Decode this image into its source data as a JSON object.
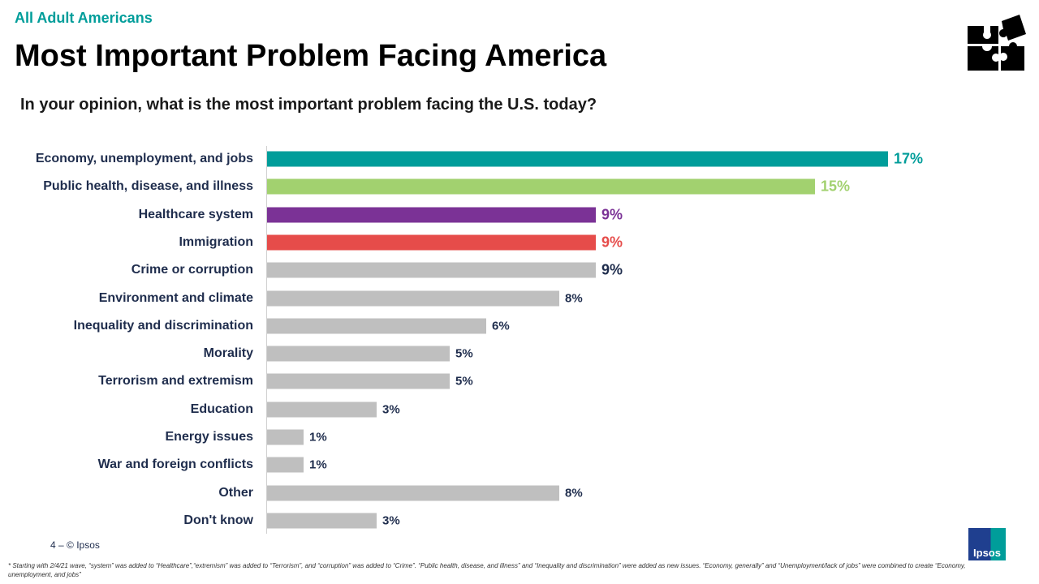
{
  "header": {
    "audience": "All Adult Americans",
    "title": "Most Important Problem Facing America",
    "question": "In your opinion, what is the most important problem facing the U.S. today?"
  },
  "chart_data": {
    "type": "bar",
    "orientation": "horizontal",
    "title": "Most Important Problem Facing America",
    "subtitle": "In your opinion, what is the most important problem facing the U.S. today?",
    "categories": [
      "Economy, unemployment, and jobs",
      "Public health, disease, and illness",
      "Healthcare system",
      "Immigration",
      "Crime or corruption",
      "Environment and climate",
      "Inequality and discrimination",
      "Morality",
      "Terrorism and extremism",
      "Education",
      "Energy issues",
      "War and foreign conflicts",
      "Other",
      "Don't know"
    ],
    "values": [
      17,
      15,
      9,
      9,
      9,
      8,
      6,
      5,
      5,
      3,
      1,
      1,
      8,
      3
    ],
    "labels": [
      "17%",
      "15%",
      "9%",
      "9%",
      "9%",
      "8%",
      "6%",
      "5%",
      "5%",
      "3%",
      "1%",
      "1%",
      "8%",
      "3%"
    ],
    "colors": [
      "#009d9a",
      "#a2d16f",
      "#7b3296",
      "#e64c4a",
      "#bfbfbf",
      "#bfbfbf",
      "#bfbfbf",
      "#bfbfbf",
      "#bfbfbf",
      "#bfbfbf",
      "#bfbfbf",
      "#bfbfbf",
      "#bfbfbf",
      "#bfbfbf"
    ],
    "label_colors": [
      "#009d9a",
      "#a2d16f",
      "#7b3296",
      "#e64c4a",
      "#1f2d4d",
      "#1f2d4d",
      "#1f2d4d",
      "#1f2d4d",
      "#1f2d4d",
      "#1f2d4d",
      "#1f2d4d",
      "#1f2d4d",
      "#1f2d4d",
      "#1f2d4d"
    ],
    "unit": "%",
    "grid": false
  },
  "footer": {
    "page": "4 –  © Ipsos",
    "footnote": "* Starting with 2/4/21 wave, “system” was added to “Healthcare”,“extremism” was added to “Terrorism”, and “corruption” was added to “Crime”. “Public health, disease, and illness” and “Inequality and discrimination” were added as new issues. “Economy, generally” and “Unemployment/lack of jobs” were combined to create “Economy, unemployment, and jobs”",
    "logo_text": "Ipsos"
  },
  "icons": {
    "top_right": "puzzle-pieces-icon"
  }
}
